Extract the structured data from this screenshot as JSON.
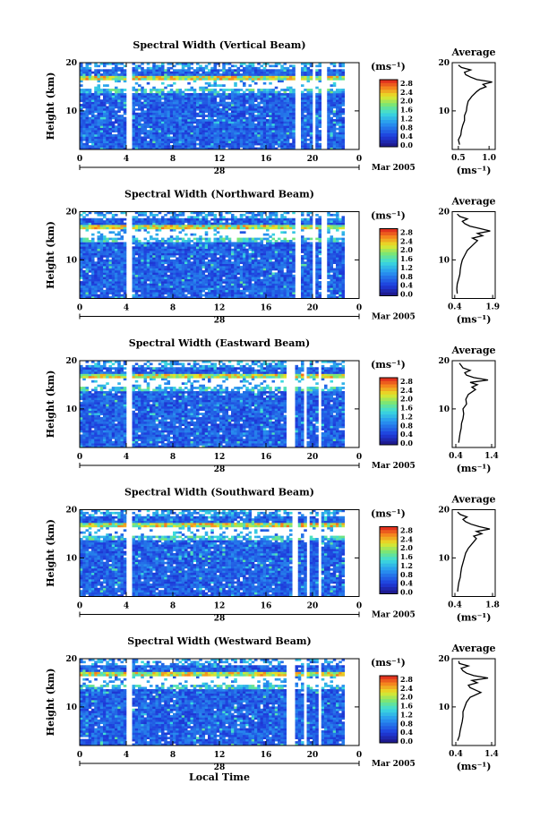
{
  "chart_data": [
    {
      "type": "heatmap",
      "title": "Spectral Width (Vertical Beam)",
      "ylabel": "Height (km)",
      "x_ticks": [
        "0",
        "4",
        "8",
        "12",
        "16",
        "20",
        "0"
      ],
      "y_ticks": [
        "20",
        "10"
      ],
      "date_day": "28",
      "date_label": "Mar 2005",
      "colorbar": {
        "unit": "(ms⁻¹)",
        "ticks": [
          "2.8",
          "2.4",
          "2.0",
          "1.6",
          "1.2",
          "0.8",
          "0.4",
          "0.0"
        ]
      },
      "xlim": [
        0,
        24
      ],
      "ylim": [
        2,
        20
      ],
      "data_gaps_local_time": [
        [
          4.0,
          4.4
        ],
        [
          18.6,
          19.0
        ],
        [
          19.9,
          20.3
        ],
        [
          20.8,
          21.2
        ]
      ],
      "profile": {
        "title": "Average",
        "xlabel": "(ms⁻¹)",
        "x_ticks": [
          "0.5",
          "1.0"
        ],
        "xlim": [
          0.4,
          1.1
        ],
        "y_ticks": [
          "20",
          "10"
        ],
        "height_km": [
          3,
          4,
          5,
          6,
          7,
          8,
          9,
          10,
          11,
          12,
          13,
          14,
          14.5,
          15,
          15.5,
          16,
          16.5,
          17,
          17.5,
          18,
          18.5,
          19,
          19.5
        ],
        "width": [
          0.52,
          0.5,
          0.54,
          0.55,
          0.57,
          0.6,
          0.6,
          0.63,
          0.64,
          0.66,
          0.72,
          0.8,
          0.85,
          0.95,
          0.9,
          1.05,
          0.8,
          0.7,
          0.62,
          0.6,
          0.7,
          0.55,
          0.5
        ]
      }
    },
    {
      "type": "heatmap",
      "title": "Spectral Width (Northward Beam)",
      "ylabel": "Height (km)",
      "x_ticks": [
        "0",
        "4",
        "8",
        "12",
        "16",
        "20",
        "0"
      ],
      "y_ticks": [
        "20",
        "10"
      ],
      "date_day": "28",
      "date_label": "Mar 2005",
      "colorbar": {
        "unit": "(ms⁻¹)",
        "ticks": [
          "2.8",
          "2.4",
          "2.0",
          "1.6",
          "1.2",
          "0.8",
          "0.4",
          "0.0"
        ]
      },
      "xlim": [
        0,
        24
      ],
      "ylim": [
        2,
        20
      ],
      "data_gaps_local_time": [
        [
          4.0,
          4.4
        ],
        [
          18.6,
          19.0
        ],
        [
          19.9,
          20.3
        ],
        [
          20.8,
          21.2
        ]
      ],
      "profile": {
        "title": "Average",
        "xlabel": "(ms⁻¹)",
        "x_ticks": [
          "0.4",
          "1.9"
        ],
        "xlim": [
          0.3,
          2.0
        ],
        "y_ticks": [
          "20",
          "10"
        ],
        "height_km": [
          3,
          4,
          5,
          6,
          7,
          8,
          9,
          10,
          11,
          12,
          13,
          14,
          14.5,
          15,
          15.5,
          16,
          16.5,
          17,
          17.5,
          18,
          18.5,
          19,
          19.5
        ],
        "width": [
          0.5,
          0.48,
          0.5,
          0.55,
          0.6,
          0.62,
          0.65,
          0.7,
          0.8,
          0.9,
          1.1,
          1.3,
          1.1,
          1.5,
          1.3,
          1.8,
          1.4,
          1.0,
          0.8,
          0.7,
          0.9,
          0.6,
          0.5
        ]
      }
    },
    {
      "type": "heatmap",
      "title": "Spectral Width (Eastward Beam)",
      "ylabel": "Height (km)",
      "x_ticks": [
        "0",
        "4",
        "8",
        "12",
        "16",
        "20",
        "0"
      ],
      "y_ticks": [
        "20",
        "10"
      ],
      "date_day": "28",
      "date_label": "Mar 2005",
      "colorbar": {
        "unit": "(ms⁻¹)",
        "ticks": [
          "2.8",
          "2.4",
          "2.0",
          "1.6",
          "1.2",
          "0.8",
          "0.4",
          "0.0"
        ]
      },
      "xlim": [
        0,
        24
      ],
      "ylim": [
        2,
        20
      ],
      "data_gaps_local_time": [
        [
          4.0,
          4.4
        ],
        [
          17.8,
          18.6
        ],
        [
          19.3,
          19.6
        ],
        [
          20.4,
          20.7
        ]
      ],
      "profile": {
        "title": "Average",
        "xlabel": "(ms⁻¹)",
        "x_ticks": [
          "0.4",
          "1.4"
        ],
        "xlim": [
          0.3,
          1.5
        ],
        "y_ticks": [
          "20",
          "10"
        ],
        "height_km": [
          3,
          4,
          5,
          6,
          7,
          8,
          9,
          10,
          11,
          12,
          13,
          14,
          14.5,
          15,
          15.5,
          16,
          16.5,
          17,
          17.5,
          18,
          18.5,
          19,
          19.5
        ],
        "width": [
          0.48,
          0.5,
          0.52,
          0.55,
          0.56,
          0.6,
          0.62,
          0.6,
          0.7,
          0.68,
          0.75,
          0.95,
          0.85,
          1.0,
          0.8,
          1.3,
          0.9,
          0.7,
          0.65,
          0.8,
          0.6,
          0.55,
          0.5
        ]
      }
    },
    {
      "type": "heatmap",
      "title": "Spectral Width (Southward Beam)",
      "ylabel": "Height (km)",
      "x_ticks": [
        "0",
        "4",
        "8",
        "12",
        "16",
        "20",
        "0"
      ],
      "y_ticks": [
        "20",
        "10"
      ],
      "date_day": "28",
      "date_label": "Mar 2005",
      "colorbar": {
        "unit": "(ms⁻¹)",
        "ticks": [
          "2.8",
          "2.4",
          "2.0",
          "1.6",
          "1.2",
          "0.8",
          "0.4",
          "0.0"
        ]
      },
      "xlim": [
        0,
        24
      ],
      "ylim": [
        2,
        20
      ],
      "data_gaps_local_time": [
        [
          4.0,
          4.4
        ],
        [
          18.3,
          18.7
        ],
        [
          19.5,
          19.8
        ],
        [
          20.4,
          20.7
        ]
      ],
      "profile": {
        "title": "Average",
        "xlabel": "(ms⁻¹)",
        "x_ticks": [
          "0.4",
          "1.8"
        ],
        "xlim": [
          0.3,
          1.9
        ],
        "y_ticks": [
          "20",
          "10"
        ],
        "height_km": [
          3,
          4,
          5,
          6,
          7,
          8,
          9,
          10,
          11,
          12,
          13,
          14,
          14.5,
          15,
          15.5,
          16,
          16.5,
          17,
          17.5,
          18,
          18.5,
          19,
          19.5
        ],
        "width": [
          0.5,
          0.52,
          0.55,
          0.6,
          0.62,
          0.65,
          0.7,
          0.75,
          0.8,
          0.9,
          1.05,
          1.2,
          1.1,
          1.4,
          1.2,
          1.7,
          1.3,
          1.0,
          0.8,
          0.7,
          0.85,
          0.6,
          0.5
        ]
      }
    },
    {
      "type": "heatmap",
      "title": "Spectral Width (Westward Beam)",
      "ylabel": "Height (km)",
      "xlabel": "Local Time",
      "x_ticks": [
        "0",
        "4",
        "8",
        "12",
        "16",
        "20",
        "0"
      ],
      "y_ticks": [
        "20",
        "10"
      ],
      "date_day": "28",
      "date_label": "Mar 2005",
      "colorbar": {
        "unit": "(ms⁻¹)",
        "ticks": [
          "2.8",
          "2.4",
          "2.0",
          "1.6",
          "1.2",
          "0.8",
          "0.4",
          "0.0"
        ]
      },
      "xlim": [
        0,
        24
      ],
      "ylim": [
        2,
        20
      ],
      "data_gaps_local_time": [
        [
          4.0,
          4.4
        ],
        [
          17.8,
          18.6
        ],
        [
          19.3,
          19.6
        ],
        [
          20.4,
          20.7
        ]
      ],
      "profile": {
        "title": "Average",
        "xlabel": "(ms⁻¹)",
        "x_ticks": [
          "0.4",
          "1.4"
        ],
        "xlim": [
          0.3,
          1.5
        ],
        "y_ticks": [
          "20",
          "10"
        ],
        "height_km": [
          3,
          4,
          5,
          6,
          7,
          8,
          9,
          10,
          11,
          12,
          13,
          14,
          14.5,
          15,
          15.5,
          16,
          16.5,
          17,
          17.5,
          18,
          18.5,
          19,
          19.5
        ],
        "width": [
          0.45,
          0.5,
          0.52,
          0.55,
          0.58,
          0.6,
          0.6,
          0.65,
          0.7,
          0.8,
          1.1,
          0.8,
          0.75,
          1.0,
          0.85,
          1.3,
          0.9,
          0.7,
          0.6,
          0.55,
          0.75,
          0.5,
          0.48
        ]
      }
    }
  ]
}
